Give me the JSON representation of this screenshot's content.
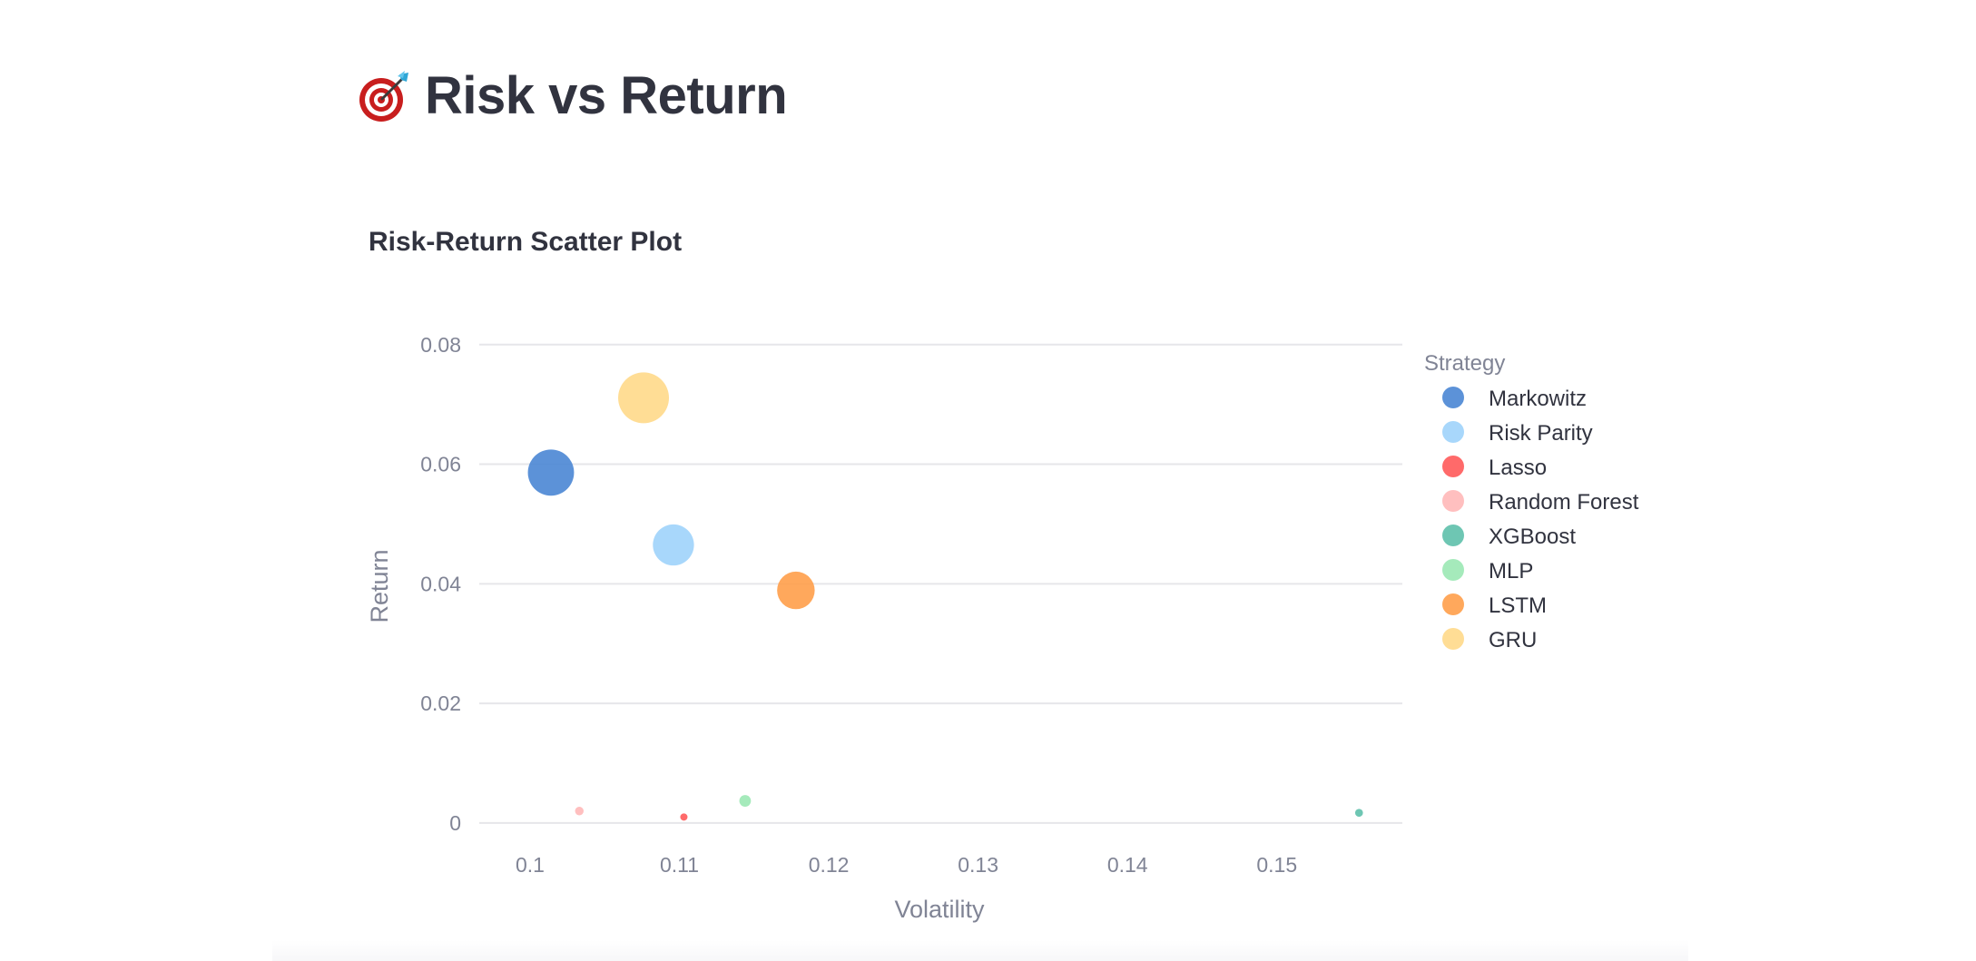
{
  "page": {
    "title": "Risk vs Return",
    "icon": "target-dart-icon"
  },
  "colors": {
    "text_dark": "#31333f",
    "text_muted": "#808495",
    "grid": "#e6e6ea"
  },
  "chart_data": {
    "type": "scatter",
    "title": "Risk-Return Scatter Plot",
    "xlabel": "Volatility",
    "ylabel": "Return",
    "xlim": [
      0.0966,
      0.1584
    ],
    "ylim": [
      -0.0035,
      0.083
    ],
    "xticks": [
      0.1,
      0.11,
      0.12,
      0.13,
      0.14,
      0.15
    ],
    "xtick_labels": [
      "0.1",
      "0.11",
      "0.12",
      "0.13",
      "0.14",
      "0.15"
    ],
    "yticks": [
      0,
      0.02,
      0.04,
      0.06,
      0.08
    ],
    "ytick_labels": [
      "0",
      "0.02",
      "0.04",
      "0.06",
      "0.08"
    ],
    "grid": true,
    "legend_title": "Strategy",
    "legend_position": "right",
    "size_encodes": "return",
    "series": [
      {
        "name": "Markowitz",
        "color": "#4a86d4",
        "x": 0.1014,
        "y": 0.0586
      },
      {
        "name": "Risk Parity",
        "color": "#9fd3fb",
        "x": 0.1096,
        "y": 0.0465
      },
      {
        "name": "Lasso",
        "color": "#ff5a5a",
        "x": 0.1103,
        "y": 0.001
      },
      {
        "name": "Random Forest",
        "color": "#ffb8b8",
        "x": 0.1033,
        "y": 0.002
      },
      {
        "name": "XGBoost",
        "color": "#5ec0ab",
        "x": 0.1555,
        "y": 0.0017
      },
      {
        "name": "MLP",
        "color": "#9be8b4",
        "x": 0.1144,
        "y": 0.0037
      },
      {
        "name": "LSTM",
        "color": "#ff9e4a",
        "x": 0.1178,
        "y": 0.0389
      },
      {
        "name": "GRU",
        "color": "#ffd98a",
        "x": 0.1076,
        "y": 0.0711
      }
    ]
  }
}
